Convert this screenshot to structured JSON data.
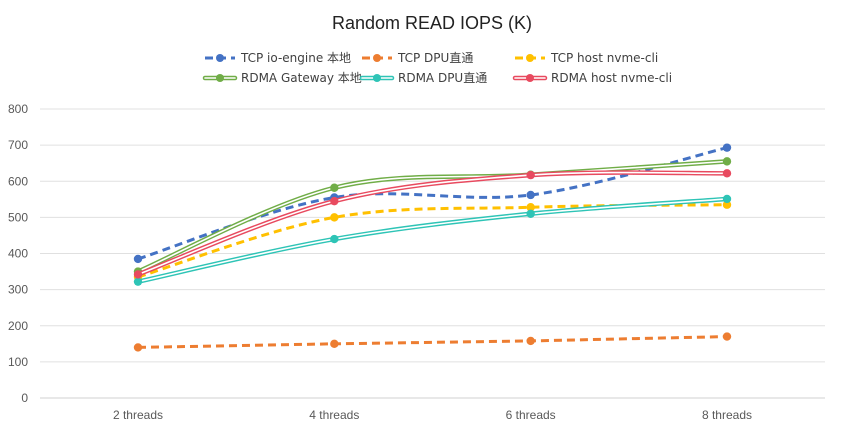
{
  "chart_data": {
    "type": "line",
    "title": "Random READ IOPS (K)",
    "xlabel": "",
    "ylabel": "",
    "categories": [
      "2 threads",
      "4 threads",
      "6 threads",
      "8 threads"
    ],
    "ylim": [
      0,
      800
    ],
    "yticks": [
      0,
      100,
      200,
      300,
      400,
      500,
      600,
      700,
      800
    ],
    "grid": true,
    "legend_position": "top",
    "series": [
      {
        "name": "TCP io-engine 本地",
        "values": [
          385,
          555,
          562,
          693
        ],
        "color": "#4472C4",
        "style": "dashed",
        "smooth": true
      },
      {
        "name": "TCP DPU直通",
        "values": [
          140,
          150,
          158,
          170
        ],
        "color": "#ED7D31",
        "style": "dashed",
        "smooth": false
      },
      {
        "name": "TCP host nvme-cli",
        "values": [
          335,
          500,
          528,
          535
        ],
        "color": "#FFC000",
        "style": "dashed",
        "smooth": true
      },
      {
        "name": "RDMA Gateway 本地",
        "values": [
          350,
          582,
          618,
          655
        ],
        "color": "#70AD47",
        "style": "double",
        "smooth": true
      },
      {
        "name": "RDMA DPU直通",
        "values": [
          322,
          440,
          510,
          551
        ],
        "color": "#2EC4B6",
        "style": "double",
        "smooth": true
      },
      {
        "name": "RDMA host nvme-cli",
        "values": [
          342,
          545,
          617,
          622
        ],
        "color": "#E84A5F",
        "style": "double",
        "smooth": true
      }
    ]
  }
}
